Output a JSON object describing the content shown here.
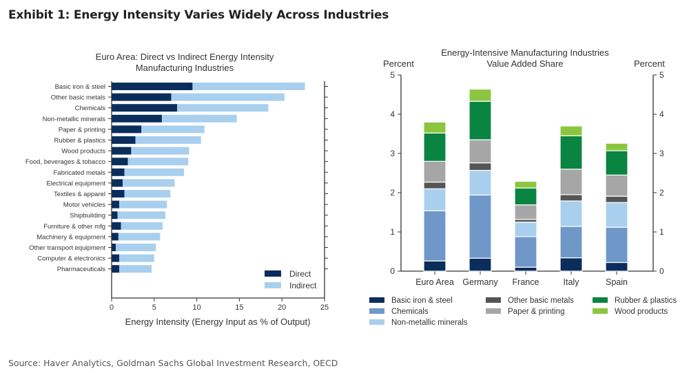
{
  "exhibit_title": "Exhibit 1: Energy Intensity Varies Widely Across Industries",
  "source": "Source: Haver Analytics, Goldman Sachs Global Investment Research, OECD",
  "chart_data": [
    {
      "type": "bar",
      "orientation": "horizontal",
      "stacked": true,
      "title": "Euro Area: Direct vs Indirect Energy Intensity",
      "subtitle": "Manufacturing Industries",
      "xlabel": "Energy Intensity (Energy Input as % of Output)",
      "ylabel": "",
      "xlim": [
        0,
        25
      ],
      "xticks": [
        "0",
        "5",
        "10",
        "15",
        "20",
        "25"
      ],
      "legend_position": "bottom-right",
      "categories": [
        "Basic iron & steel",
        "Other basic metals",
        "Chemicals",
        "Non-metallic minerals",
        "Paper & printing",
        "Rubber & plastics",
        "Wood products",
        "Food, beverages & tobacco",
        "Fabricated metals",
        "Electrical equipment",
        "Textiles & apparel",
        "Motor vehicles",
        "Shipbuilding",
        "Furniture & other mfg",
        "Machinery & equipment",
        "Other transport equipment",
        "Computer & electronics",
        "Pharmaceuticals"
      ],
      "series": [
        {
          "name": "Direct",
          "color": "#0b2d5b",
          "values": [
            9.5,
            7.0,
            7.7,
            5.9,
            3.5,
            2.8,
            2.3,
            1.9,
            1.5,
            1.3,
            1.5,
            0.9,
            0.7,
            1.1,
            0.8,
            0.5,
            0.9,
            0.9
          ]
        },
        {
          "name": "Indirect",
          "color": "#a9cfee",
          "values": [
            13.2,
            13.3,
            10.7,
            8.8,
            7.4,
            7.7,
            6.8,
            7.1,
            7.0,
            6.1,
            5.4,
            5.6,
            5.6,
            4.9,
            4.9,
            4.7,
            4.1,
            3.8
          ]
        }
      ]
    },
    {
      "type": "bar",
      "orientation": "vertical",
      "stacked": true,
      "title": "Energy-Intensive Manufacturing Industries",
      "subtitle": "Value Added Share",
      "ylabel_left": "Percent",
      "ylabel_right": "Percent",
      "ylim": [
        0,
        5
      ],
      "yticks": [
        "0",
        "1",
        "2",
        "3",
        "4",
        "5"
      ],
      "legend_position": "bottom",
      "categories": [
        "Euro Area",
        "Germany",
        "France",
        "Italy",
        "Spain"
      ],
      "series": [
        {
          "name": "Basic iron & steel",
          "color": "#0b2d5b",
          "values": [
            0.26,
            0.33,
            0.1,
            0.34,
            0.22
          ]
        },
        {
          "name": "Chemicals",
          "color": "#6f98c8",
          "values": [
            1.28,
            1.61,
            0.78,
            0.8,
            0.9
          ]
        },
        {
          "name": "Non-metallic minerals",
          "color": "#a9cfee",
          "values": [
            0.56,
            0.63,
            0.37,
            0.65,
            0.63
          ]
        },
        {
          "name": "Other basic metals",
          "color": "#555555",
          "values": [
            0.17,
            0.19,
            0.07,
            0.16,
            0.16
          ]
        },
        {
          "name": "Paper & printing",
          "color": "#a6a6a6",
          "values": [
            0.53,
            0.59,
            0.37,
            0.65,
            0.54
          ]
        },
        {
          "name": "Rubber & plastics",
          "color": "#0a8441",
          "values": [
            0.72,
            0.98,
            0.43,
            0.85,
            0.62
          ]
        },
        {
          "name": "Wood products",
          "color": "#8cc63f",
          "values": [
            0.28,
            0.31,
            0.17,
            0.25,
            0.19
          ]
        }
      ],
      "legend_order": [
        "Basic iron & steel",
        "Other basic metals",
        "Rubber & plastics",
        "Chemicals",
        "Paper & printing",
        "Wood products",
        "Non-metallic minerals"
      ]
    }
  ]
}
